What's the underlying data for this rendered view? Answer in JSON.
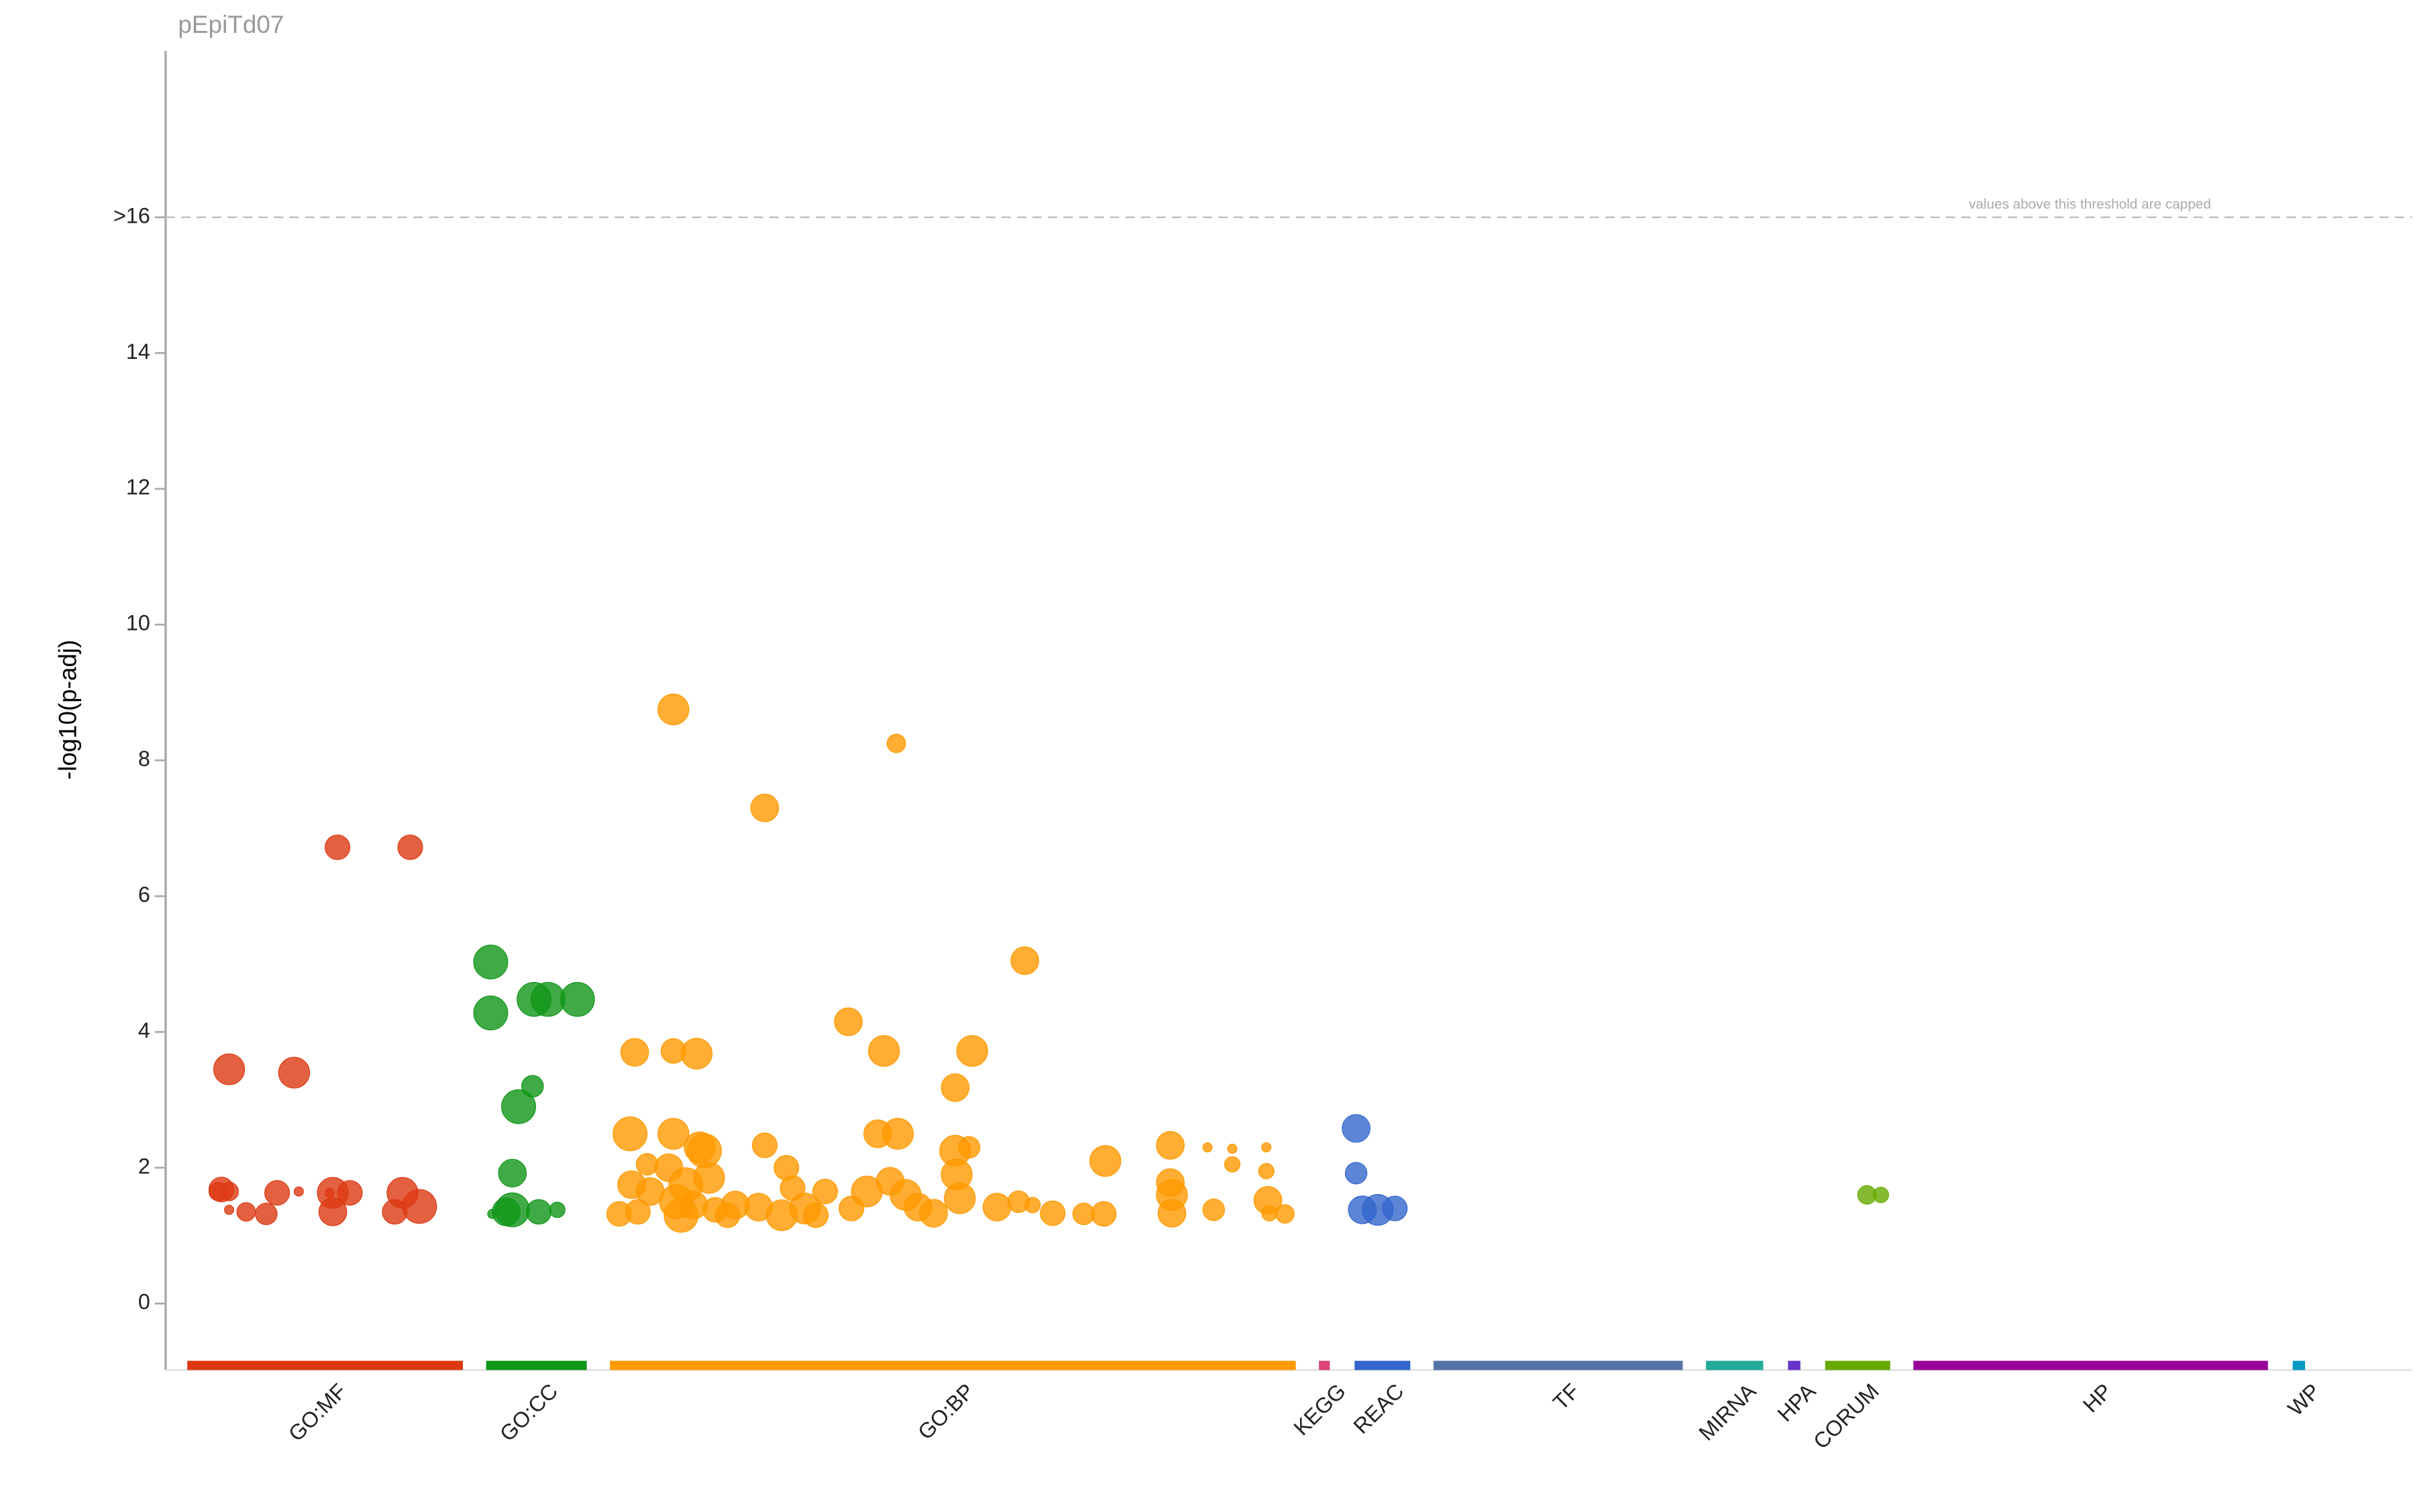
{
  "chart_data": {
    "type": "manhattan",
    "title": "pEpiTd07",
    "y_label": "-log10(p-adj)",
    "annotation": "values above this threshold are capped",
    "xlim": [
      0,
      1451
    ],
    "ylim": [
      -0.98,
      18.45
    ],
    "yticks": [
      0,
      2,
      4,
      6,
      8,
      10,
      12,
      14,
      {
        "value": 16,
        "label": ">16"
      }
    ],
    "series": [
      {
        "name": "GO:MF",
        "color": "#dc3912",
        "range": [
          14,
          192
        ],
        "x": [
          36,
          41,
          34,
          41,
          41,
          52,
          65,
          72,
          83,
          86,
          106,
          108,
          108,
          111,
          119,
          148,
          153,
          158,
          164
        ],
        "values": [
          1.68,
          1.65,
          1.65,
          3.45,
          1.38,
          1.35,
          1.32,
          1.63,
          3.4,
          1.65,
          1.63,
          1.63,
          1.35,
          6.72,
          1.63,
          1.35,
          1.63,
          6.72,
          1.43
        ],
        "sizes": [
          8,
          6,
          6,
          10,
          3,
          6,
          7,
          8,
          10,
          3,
          3,
          10,
          9,
          8,
          8,
          8,
          10,
          8,
          11
        ]
      },
      {
        "name": "GO:CC",
        "color": "#109618",
        "range": [
          207,
          272
        ],
        "x": [
          210,
          210,
          211,
          220,
          224,
          224,
          228,
          237,
          238,
          241,
          247,
          253,
          266
        ],
        "values": [
          5.03,
          4.28,
          1.32,
          1.35,
          1.92,
          1.38,
          2.9,
          3.2,
          4.48,
          1.35,
          4.48,
          1.38,
          4.48
        ],
        "sizes": [
          11,
          11,
          3,
          9,
          9,
          11,
          11,
          7,
          11,
          8,
          11,
          5,
          11
        ]
      },
      {
        "name": "GO:BP",
        "color": "#ff9900",
        "range": [
          287,
          730
        ],
        "x": [
          293,
          300,
          301,
          303,
          305,
          311,
          313,
          325,
          328,
          328,
          328,
          330,
          333,
          336,
          341,
          343,
          345,
          348,
          351,
          355,
          363,
          368,
          383,
          387,
          387,
          398,
          401,
          405,
          413,
          420,
          426,
          441,
          443,
          453,
          460,
          464,
          468,
          472,
          473,
          478,
          486,
          496,
          510,
          510,
          511,
          513,
          519,
          521,
          537,
          551,
          555,
          560,
          573,
          593,
          606,
          607,
          649,
          649,
          650,
          650,
          673,
          677,
          689,
          689,
          711,
          711,
          712,
          713,
          723
        ],
        "values": [
          1.32,
          2.5,
          1.75,
          3.7,
          1.35,
          2.05,
          1.65,
          2.0,
          3.72,
          8.75,
          2.5,
          1.5,
          1.3,
          1.75,
          1.45,
          3.68,
          2.3,
          2.25,
          1.85,
          1.38,
          1.3,
          1.45,
          1.42,
          7.3,
          2.33,
          1.3,
          2.0,
          1.7,
          1.4,
          1.3,
          1.65,
          4.15,
          1.4,
          1.65,
          2.5,
          3.72,
          1.8,
          8.25,
          2.5,
          1.6,
          1.42,
          1.33,
          3.18,
          2.25,
          1.9,
          1.55,
          2.3,
          3.72,
          1.42,
          1.5,
          5.05,
          1.45,
          1.33,
          1.32,
          1.32,
          2.1,
          2.33,
          1.78,
          1.6,
          1.33,
          2.3,
          1.38,
          2.05,
          2.28,
          2.3,
          1.95,
          1.52,
          1.33,
          1.32
        ],
        "sizes": [
          8,
          11,
          9,
          9,
          8,
          7,
          9,
          9,
          8,
          10,
          10,
          11,
          11,
          11,
          9,
          10,
          10,
          11,
          10,
          8,
          8,
          9,
          9,
          9,
          8,
          10,
          8,
          8,
          10,
          8,
          8,
          9,
          8,
          10,
          9,
          10,
          9,
          6,
          10,
          10,
          9,
          9,
          9,
          10,
          10,
          10,
          7,
          10,
          9,
          7,
          9,
          5,
          8,
          7,
          8,
          10,
          9,
          9,
          10,
          9,
          3,
          7,
          5,
          3,
          3,
          5,
          9,
          5,
          6
        ]
      },
      {
        "name": "KEGG",
        "color": "#dd4477",
        "range": [
          745,
          752
        ],
        "x": [],
        "values": [],
        "sizes": []
      },
      {
        "name": "REAC",
        "color": "#3366cc",
        "range": [
          768,
          804
        ],
        "x": [
          769,
          769,
          773,
          783,
          794
        ],
        "values": [
          2.58,
          1.92,
          1.38,
          1.38,
          1.4
        ],
        "sizes": [
          9,
          7,
          9,
          10,
          8
        ]
      },
      {
        "name": "TF",
        "color": "#5574a6",
        "range": [
          819,
          980
        ],
        "x": [],
        "values": [],
        "sizes": []
      },
      {
        "name": "MIRNA",
        "color": "#22aa99",
        "range": [
          995,
          1032
        ],
        "x": [],
        "values": [],
        "sizes": []
      },
      {
        "name": "HPA",
        "color": "#6633cc",
        "range": [
          1048,
          1056
        ],
        "x": [],
        "values": [],
        "sizes": []
      },
      {
        "name": "CORUM",
        "color": "#66aa00",
        "range": [
          1072,
          1114
        ],
        "x": [
          1099,
          1108
        ],
        "values": [
          1.6,
          1.6
        ],
        "sizes": [
          6,
          5
        ]
      },
      {
        "name": "HP",
        "color": "#990099",
        "range": [
          1129,
          1358
        ],
        "x": [],
        "values": [],
        "sizes": []
      },
      {
        "name": "WP",
        "color": "#0099c6",
        "range": [
          1374,
          1382
        ],
        "x": [],
        "values": [],
        "sizes": []
      }
    ]
  }
}
